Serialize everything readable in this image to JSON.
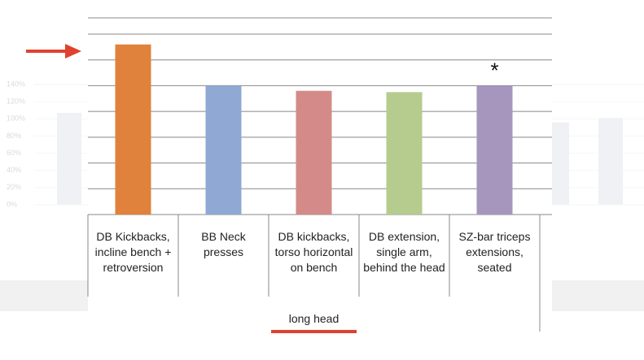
{
  "chart_data": [
    {
      "type": "bar",
      "categories": [
        null,
        null,
        null
      ],
      "values": [
        107,
        96,
        101
      ],
      "color": "#e4e6ee",
      "ylim": [
        0,
        140
      ],
      "yticks": [
        {
          "value": 0,
          "label": "0%"
        },
        {
          "value": 20,
          "label": "20%"
        },
        {
          "value": 40,
          "label": "40%"
        },
        {
          "value": 60,
          "label": "60%"
        },
        {
          "value": 80,
          "label": "80%"
        },
        {
          "value": 100,
          "label": "100%"
        },
        {
          "value": 120,
          "label": "120%"
        },
        {
          "value": 140,
          "label": "140%"
        }
      ],
      "grid": true
    },
    {
      "type": "bar",
      "categories": [
        "DB Kickbacks, incline bench + retroversion",
        "BB Neck presses",
        "DB kickbacks, torso horizontal on bench",
        "DB extension, single arm, behind the head",
        "SZ-bar triceps extensions, seated"
      ],
      "values": [
        132,
        100,
        96,
        95,
        100
      ],
      "colors": [
        "#e0823b",
        "#8fa9d4",
        "#d48a89",
        "#b5cc8e",
        "#a696be"
      ],
      "ylim": [
        0,
        140
      ],
      "yticks": [
        0,
        20,
        40,
        60,
        80,
        100,
        120,
        140
      ],
      "grid": true,
      "xlabel": "long head",
      "annotation": "*"
    }
  ]
}
